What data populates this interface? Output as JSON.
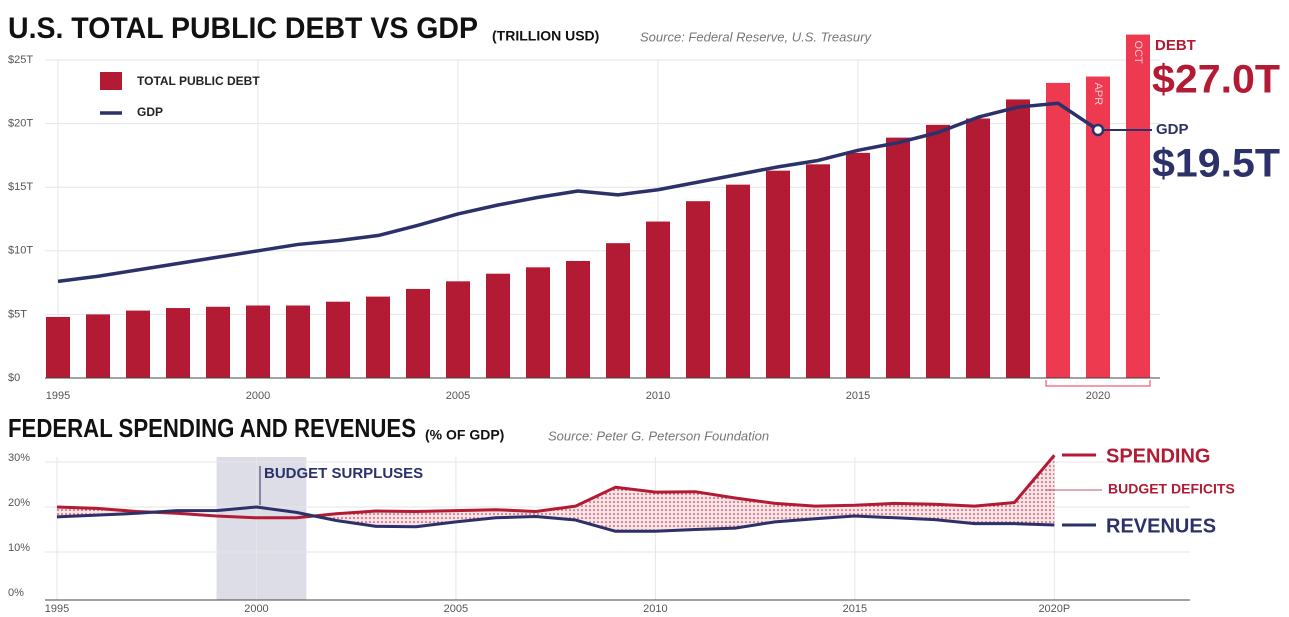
{
  "chart_data": [
    {
      "type": "bar",
      "title": "U.S. TOTAL PUBLIC DEBT VS GDP",
      "subtitle": "(TRILLION USD)",
      "source": "Source: Federal Reserve, U.S. Treasury",
      "categories": [
        "1995",
        null,
        null,
        null,
        null,
        "2000",
        null,
        null,
        null,
        null,
        "2005",
        null,
        null,
        null,
        null,
        "2010",
        null,
        null,
        null,
        null,
        "2015",
        null,
        null,
        null,
        null,
        null,
        "2020",
        null
      ],
      "bar_labels": [
        null,
        null,
        null,
        null,
        null,
        null,
        null,
        null,
        null,
        null,
        null,
        null,
        null,
        null,
        null,
        null,
        null,
        null,
        null,
        null,
        null,
        null,
        null,
        null,
        null,
        null,
        "APR",
        "OCT"
      ],
      "series": [
        {
          "name": "TOTAL PUBLIC DEBT",
          "callout": "DEBT",
          "type": "bar",
          "color": "#b31b34",
          "colors": [
            "#b31b34",
            "#b31b34",
            "#b31b34",
            "#b31b34",
            "#b31b34",
            "#b31b34",
            "#b31b34",
            "#b31b34",
            "#b31b34",
            "#b31b34",
            "#b31b34",
            "#b31b34",
            "#b31b34",
            "#b31b34",
            "#b31b34",
            "#b31b34",
            "#b31b34",
            "#b31b34",
            "#b31b34",
            "#b31b34",
            "#b31b34",
            "#b31b34",
            "#b31b34",
            "#b31b34",
            "#b31b34",
            "#ee3a50",
            "#ee3a50",
            "#ee3a50"
          ],
          "values": [
            4.8,
            5.0,
            5.3,
            5.5,
            5.6,
            5.7,
            5.7,
            6.0,
            6.4,
            7.0,
            7.6,
            8.2,
            8.7,
            9.2,
            10.6,
            12.3,
            13.9,
            15.2,
            16.3,
            16.8,
            17.7,
            18.9,
            19.9,
            20.4,
            21.9,
            23.2,
            23.7,
            27.0
          ],
          "value_labels": [
            null,
            null,
            null,
            null,
            null,
            null,
            null,
            null,
            null,
            null,
            null,
            null,
            null,
            null,
            null,
            null,
            null,
            null,
            null,
            null,
            null,
            null,
            null,
            null,
            null,
            null,
            null,
            "$27.0T"
          ]
        },
        {
          "name": "GDP",
          "callout": "GDP",
          "type": "line",
          "color": "#2c3169",
          "values": [
            7.6,
            8.0,
            8.5,
            9.0,
            9.5,
            10.0,
            10.5,
            10.8,
            11.2,
            12.0,
            12.9,
            13.6,
            14.2,
            14.7,
            14.4,
            14.8,
            15.4,
            16.0,
            16.6,
            17.1,
            17.9,
            18.5,
            19.3,
            20.5,
            21.3,
            21.6,
            19.5,
            null
          ],
          "value_labels": [
            null,
            null,
            null,
            null,
            null,
            null,
            null,
            null,
            null,
            null,
            null,
            null,
            null,
            null,
            null,
            null,
            null,
            null,
            null,
            null,
            null,
            null,
            null,
            null,
            null,
            null,
            "$19.5T",
            null
          ]
        }
      ],
      "ylim": [
        0,
        25
      ],
      "yticks": [
        {
          "value": 0,
          "label": "$0"
        },
        {
          "value": 5,
          "label": "$5T"
        },
        {
          "value": 10,
          "label": "$10T"
        },
        {
          "value": 15,
          "label": "$15T"
        },
        {
          "value": 20,
          "label": "$20T"
        },
        {
          "value": 25,
          "label": "$25T"
        }
      ],
      "grid": true,
      "legend": "upper left"
    },
    {
      "type": "line",
      "title": "FEDERAL SPENDING AND REVENUES",
      "subtitle": "(% OF GDP)",
      "source": "Source: Peter G. Peterson Foundation",
      "x": [
        1995,
        1996,
        1997,
        1998,
        1999,
        2000,
        2001,
        2002,
        2003,
        2004,
        2005,
        2006,
        2007,
        2008,
        2009,
        2010,
        2011,
        2012,
        2013,
        2014,
        2015,
        2016,
        2017,
        2018,
        2019,
        2020
      ],
      "xlim": [
        1994.7,
        2023.4
      ],
      "xticks": [
        1995,
        2000,
        2005,
        2010,
        2015,
        {
          "value": 2020,
          "label": "2020P"
        }
      ],
      "ylim": [
        0,
        30
      ],
      "yticks": [
        {
          "value": 0,
          "label": "0%"
        },
        {
          "value": 10,
          "label": "10%"
        },
        {
          "value": 20,
          "label": "20%"
        },
        {
          "value": 30,
          "label": "30%"
        }
      ],
      "series": [
        {
          "name": "SPENDING",
          "color": "#b31b34",
          "values": [
            20.0,
            19.7,
            19.0,
            18.6,
            18.0,
            17.6,
            17.6,
            18.5,
            19.1,
            19.0,
            19.2,
            19.4,
            19.0,
            20.2,
            24.4,
            23.3,
            23.4,
            22.0,
            20.8,
            20.2,
            20.4,
            20.8,
            20.6,
            20.2,
            21.0,
            31.5
          ]
        },
        {
          "name": "REVENUES",
          "color": "#2c3169",
          "values": [
            17.8,
            18.2,
            18.6,
            19.2,
            19.2,
            20.0,
            18.8,
            17.0,
            15.7,
            15.6,
            16.7,
            17.6,
            17.9,
            17.1,
            14.6,
            14.6,
            15.0,
            15.3,
            16.7,
            17.4,
            18.0,
            17.6,
            17.2,
            16.3,
            16.3,
            16.0
          ]
        }
      ],
      "surplus": {
        "label": "BUDGET SURPLUSES",
        "span": [
          1999,
          2001.25
        ]
      },
      "deficit_label": "BUDGET DEFICITS",
      "grid": true
    }
  ]
}
